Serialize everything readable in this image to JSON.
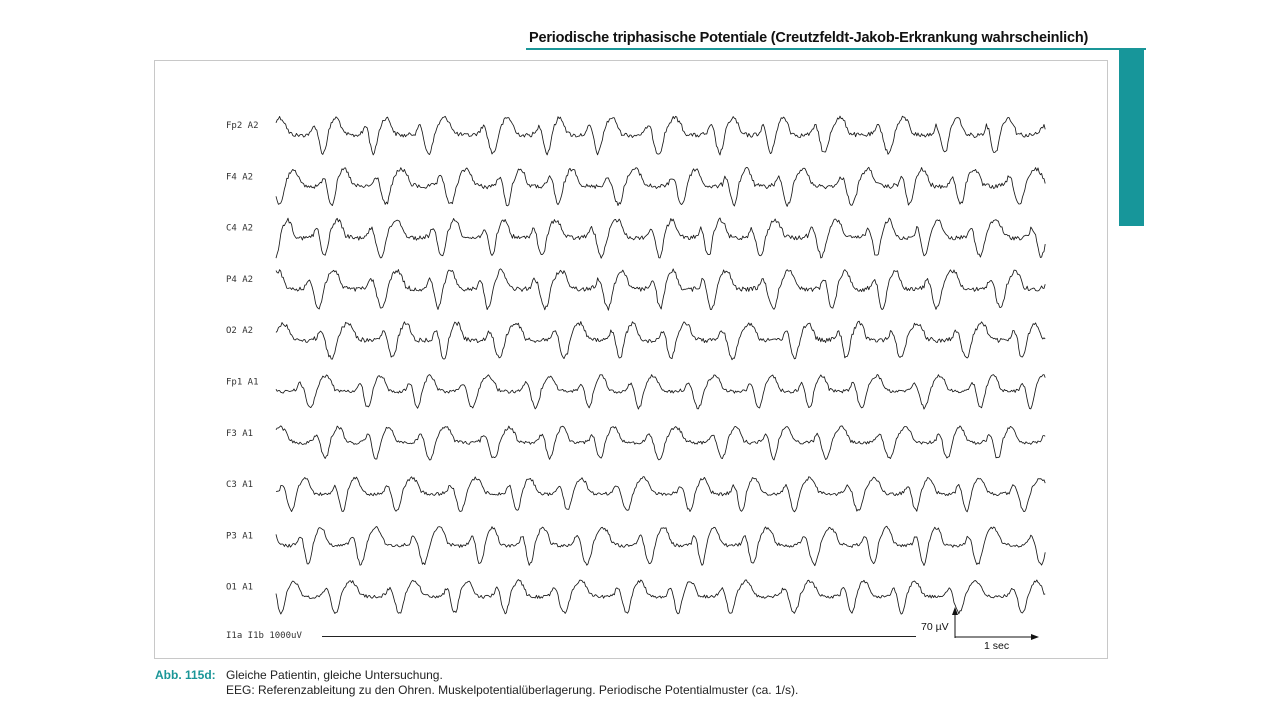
{
  "header": {
    "title": "Periodische triphasische Potentiale (Creutzfeldt-Jakob-Erkrankung wahrscheinlich)",
    "accent_color": "#1a9698"
  },
  "figure": {
    "channels": [
      {
        "label": "Fp2  A2"
      },
      {
        "label": "F4  A2"
      },
      {
        "label": "C4  A2"
      },
      {
        "label": "P4  A2"
      },
      {
        "label": "O2  A2"
      },
      {
        "label": "Fp1  A1"
      },
      {
        "label": "F3  A1"
      },
      {
        "label": "C3  A1"
      },
      {
        "label": "P3  A1"
      },
      {
        "label": "O1  A1"
      }
    ],
    "marker_channel_label": "I1a  I1b  1000uV",
    "calibration": {
      "amplitude_label": "70 µV",
      "time_label": "1 sec"
    }
  },
  "caption": {
    "label": "Abb. 115d:",
    "line1": "Gleiche Patientin, gleiche Untersuchung.",
    "line2": "EEG: Referenzableitung zu den Ohren. Muskelpotentialüberlagerung. Periodische Potentialmuster (ca. 1/s)."
  }
}
